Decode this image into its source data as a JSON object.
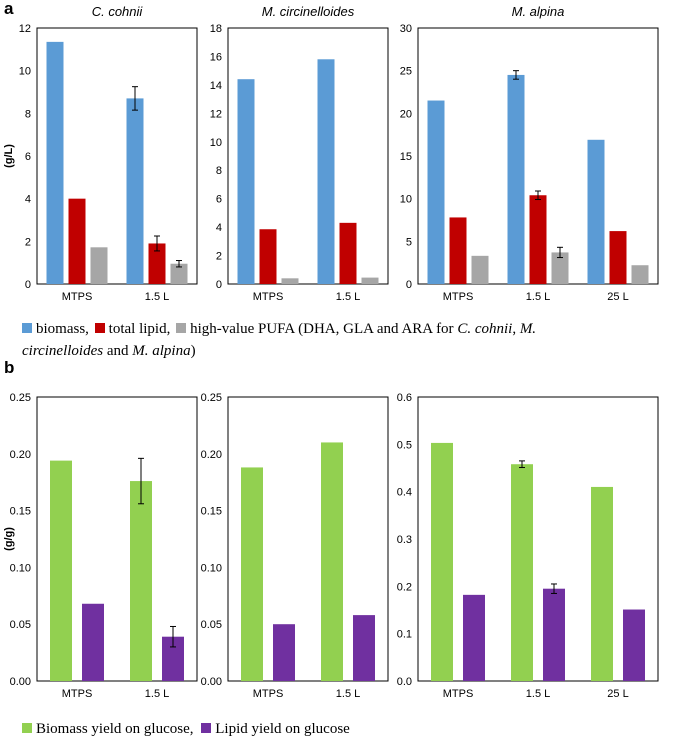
{
  "panel_a_letter": "a",
  "panel_b_letter": "b",
  "colors": {
    "biomass": "#5b9bd5",
    "lipid": "#c00000",
    "pufa": "#a6a6a6",
    "biomass_yield": "#92d050",
    "lipid_yield": "#7030a0"
  },
  "legend_a": {
    "biomass": "biomass,",
    "lipid": "total lipid,",
    "pufa_prefix": "high-value PUFA (DHA, GLA and ARA for ",
    "species1": "C. cohnii",
    "sep1": ", ",
    "species2_part1": "M.",
    "species2_part2": "circinelloides",
    "sep2": " and ",
    "species3": "M. alpina",
    "suffix": ")"
  },
  "legend_b": {
    "biomass_yield": "Biomass yield on glucose,",
    "lipid_yield": "Lipid yield on glucose"
  },
  "chart_data": [
    {
      "type": "bar",
      "panel": "a",
      "title": "C. cohnii",
      "ylabel": "(g/L)",
      "xlabel": "",
      "categories": [
        "MTPS",
        "1.5 L"
      ],
      "ylim": [
        0,
        12
      ],
      "yticks": [
        0,
        2,
        4,
        6,
        8,
        10,
        12
      ],
      "decimals": 0,
      "series": [
        {
          "name": "biomass",
          "values": [
            11.35,
            8.7
          ],
          "errors": [
            null,
            0.55
          ]
        },
        {
          "name": "total lipid",
          "values": [
            4.0,
            1.9
          ],
          "errors": [
            null,
            0.35
          ]
        },
        {
          "name": "high-value PUFA",
          "values": [
            1.72,
            0.95
          ],
          "errors": [
            null,
            0.15
          ]
        }
      ]
    },
    {
      "type": "bar",
      "panel": "a",
      "title": "M. circinelloides",
      "ylabel": "",
      "xlabel": "",
      "categories": [
        "MTPS",
        "1.5 L"
      ],
      "ylim": [
        0,
        18
      ],
      "yticks": [
        0,
        2,
        4,
        6,
        8,
        10,
        12,
        14,
        16,
        18
      ],
      "decimals": 0,
      "series": [
        {
          "name": "biomass",
          "values": [
            14.4,
            15.8
          ],
          "errors": [
            null,
            null
          ]
        },
        {
          "name": "total lipid",
          "values": [
            3.85,
            4.3
          ],
          "errors": [
            null,
            null
          ]
        },
        {
          "name": "high-value PUFA",
          "values": [
            0.4,
            0.45
          ],
          "errors": [
            null,
            null
          ]
        }
      ]
    },
    {
      "type": "bar",
      "panel": "a",
      "title": "M. alpina",
      "ylabel": "",
      "xlabel": "",
      "categories": [
        "MTPS",
        "1.5 L",
        "25 L"
      ],
      "ylim": [
        0,
        30
      ],
      "yticks": [
        0,
        5,
        10,
        15,
        20,
        25,
        30
      ],
      "decimals": 0,
      "series": [
        {
          "name": "biomass",
          "values": [
            21.5,
            24.5,
            16.9
          ],
          "errors": [
            null,
            0.5,
            null
          ]
        },
        {
          "name": "total lipid",
          "values": [
            7.8,
            10.4,
            6.2
          ],
          "errors": [
            null,
            0.5,
            null
          ]
        },
        {
          "name": "high-value PUFA",
          "values": [
            3.3,
            3.7,
            2.2
          ],
          "errors": [
            null,
            0.6,
            null
          ]
        }
      ]
    },
    {
      "type": "bar",
      "panel": "b",
      "title": "",
      "ylabel": "(g/g)",
      "xlabel": "",
      "categories": [
        "MTPS",
        "1.5 L"
      ],
      "ylim": [
        0,
        0.25
      ],
      "yticks": [
        0,
        0.05,
        0.1,
        0.15,
        0.2,
        0.25
      ],
      "decimals": 2,
      "series": [
        {
          "name": "Biomass yield on glucose",
          "values": [
            0.194,
            0.176
          ],
          "errors": [
            null,
            0.02
          ]
        },
        {
          "name": "Lipid yield on glucose",
          "values": [
            0.068,
            0.039
          ],
          "errors": [
            null,
            0.009
          ]
        }
      ]
    },
    {
      "type": "bar",
      "panel": "b",
      "title": "",
      "ylabel": "",
      "xlabel": "",
      "categories": [
        "MTPS",
        "1.5 L"
      ],
      "ylim": [
        0,
        0.25
      ],
      "yticks": [
        0,
        0.05,
        0.1,
        0.15,
        0.2,
        0.25
      ],
      "decimals": 2,
      "series": [
        {
          "name": "Biomass yield on glucose",
          "values": [
            0.188,
            0.21
          ],
          "errors": [
            null,
            null
          ]
        },
        {
          "name": "Lipid yield on glucose",
          "values": [
            0.05,
            0.058
          ],
          "errors": [
            null,
            null
          ]
        }
      ]
    },
    {
      "type": "bar",
      "panel": "b",
      "title": "",
      "ylabel": "",
      "xlabel": "",
      "categories": [
        "MTPS",
        "1.5 L",
        "25 L"
      ],
      "ylim": [
        0,
        0.6
      ],
      "yticks": [
        0,
        0.1,
        0.2,
        0.3,
        0.4,
        0.5,
        0.6
      ],
      "decimals": 1,
      "series": [
        {
          "name": "Biomass yield on glucose",
          "values": [
            0.503,
            0.458,
            0.41
          ],
          "errors": [
            null,
            0.007,
            null
          ]
        },
        {
          "name": "Lipid yield on glucose",
          "values": [
            0.182,
            0.195,
            0.151
          ],
          "errors": [
            null,
            0.01,
            null
          ]
        }
      ]
    }
  ]
}
